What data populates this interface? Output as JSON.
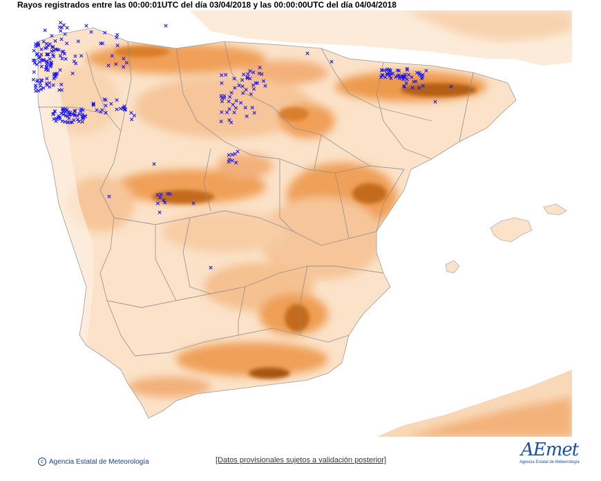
{
  "title": "Rayos registrados entre las 00:00:01UTC del día 03/04/2018 y las 00:00:00UTC del día 04/04/2018",
  "footer": {
    "agency": "Agencia Estatal de Meteorología",
    "disclaimer": "[Datos provisionales sujetos a validación posterior]"
  },
  "logo": {
    "text": "AEmet",
    "subtitle": "Agencia Estatal de Meteorología"
  },
  "colors": {
    "sea": "#ffffff",
    "relief_low": "#fbe3cc",
    "relief_mid": "#f3a866",
    "relief_high": "#b35f12",
    "borders": "#8c8c8c",
    "strike_marker": "#1010ff"
  },
  "marker_symbol": "×"
}
